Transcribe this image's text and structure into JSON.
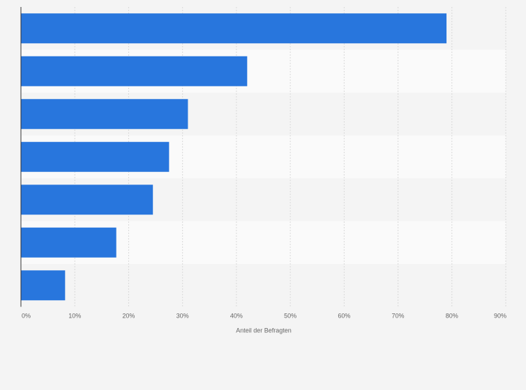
{
  "chart_data": {
    "type": "bar",
    "orientation": "horizontal",
    "categories": [
      "",
      "",
      "",
      "",
      "",
      "",
      ""
    ],
    "values": [
      79,
      42,
      31,
      27.5,
      24.5,
      17.7,
      8.2
    ],
    "xlabel": "Anteil der Befragten",
    "ylabel": "",
    "xlim": [
      0,
      90
    ],
    "x_ticks": [
      0,
      10,
      20,
      30,
      40,
      50,
      60,
      70,
      80,
      90
    ],
    "x_tick_labels": [
      "0%",
      "10%",
      "20%",
      "30%",
      "40%",
      "50%",
      "60%",
      "70%",
      "80%",
      "90%"
    ],
    "grid": true,
    "legend": "none",
    "colors": {
      "bar": "#2876dd",
      "background": "#f4f4f4",
      "band_light": "#fafafa",
      "band_dark": "#f4f4f4",
      "gridline": "#d9d9d9",
      "axis": "#333333",
      "text": "#666666"
    }
  }
}
